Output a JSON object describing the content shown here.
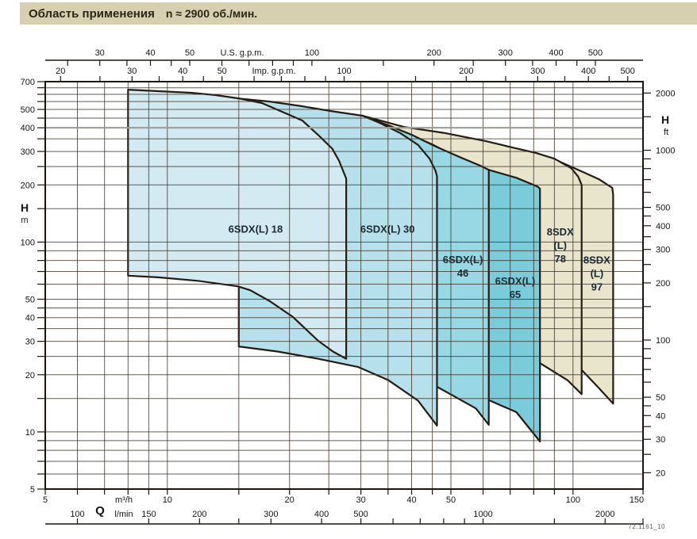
{
  "title": {
    "main": "Область применения",
    "rpm": "n ≈ 2900 об./мин."
  },
  "footnote": "72.1161_10",
  "colors": {
    "title_bg": "#d6d0b0",
    "outline": "#241c12",
    "grid": "#3a3125",
    "grid_gray_line": "#9c9c96",
    "text": "#141414",
    "region_label": "#1c2b33",
    "beige": "#e9e4cc"
  },
  "chart_data": {
    "type": "area",
    "description": "Log-log pump application range chart: overlapping operating envelopes (Q flow vs H head) for 6SDX(L) and 8SDX(L) borehole pump models at n ≈ 2900 rpm",
    "x_scale": {
      "unit": "m³/h",
      "min": 5,
      "max": 150,
      "log": true
    },
    "y_scale": {
      "unit": "m",
      "min": 5,
      "max": 700,
      "log": true
    },
    "grid": {
      "q_lines": [
        6,
        7,
        8,
        9,
        10,
        15,
        20,
        25,
        30,
        35,
        40,
        45,
        50,
        60,
        70,
        80,
        90,
        100
      ],
      "h_lines": [
        6,
        7,
        8,
        9,
        10,
        15,
        20,
        25,
        30,
        35,
        40,
        45,
        50,
        60,
        70,
        80,
        90,
        100,
        150,
        200,
        250,
        300,
        350,
        450,
        500,
        550,
        600,
        650
      ],
      "h_gray_line": 400
    },
    "axes": {
      "top_us": {
        "title": "U.S. g.p.m.",
        "factor_to_m3h": 0.22712,
        "ticks": [
          25,
          30,
          35,
          40,
          45,
          50,
          60,
          70,
          80,
          90,
          100,
          150,
          200,
          250,
          300,
          350,
          400,
          450,
          500
        ],
        "labeled": [
          30,
          40,
          50,
          100,
          200,
          300,
          400,
          500
        ]
      },
      "top_imp": {
        "title": "Imp. g.p.m.",
        "factor_to_m3h": 0.27276,
        "ticks": [
          20,
          25,
          30,
          35,
          40,
          45,
          50,
          60,
          70,
          80,
          90,
          100,
          150,
          200,
          250,
          300,
          350,
          400,
          450,
          500
        ],
        "labeled": [
          20,
          30,
          40,
          50,
          100,
          200,
          300,
          400,
          500
        ]
      },
      "left": {
        "title": "H",
        "unit": "m",
        "ticks": [
          700,
          650,
          600,
          550,
          500,
          450,
          400,
          350,
          300,
          250,
          200,
          150,
          100,
          90,
          80,
          70,
          60,
          50,
          45,
          40,
          35,
          30,
          25,
          20,
          15,
          10,
          9,
          8,
          7,
          6,
          5
        ],
        "labeled": [
          700,
          500,
          400,
          300,
          200,
          100,
          50,
          40,
          30,
          20,
          10,
          5
        ]
      },
      "right": {
        "title": "H",
        "unit": "ft",
        "factor_to_m": 0.3048,
        "ticks": [
          2000,
          1500,
          1000,
          900,
          800,
          700,
          600,
          500,
          450,
          400,
          350,
          300,
          250,
          200,
          150,
          100,
          90,
          80,
          70,
          60,
          50,
          45,
          40,
          35,
          30,
          25,
          20
        ],
        "labeled": [
          2000,
          1000,
          500,
          400,
          300,
          200,
          100,
          50,
          40,
          30,
          20
        ]
      },
      "bottom_m3h": {
        "title": "Q",
        "unit": "m³/h",
        "ticks": [
          5,
          6,
          7,
          8,
          9,
          10,
          15,
          20,
          25,
          30,
          35,
          40,
          45,
          50,
          60,
          70,
          80,
          90,
          100,
          150
        ],
        "labeled": [
          5,
          10,
          20,
          30,
          40,
          50,
          100,
          150
        ]
      },
      "bottom_lmin": {
        "unit": "l/min",
        "factor_to_m3h": 0.06,
        "ticks": [
          100,
          150,
          200,
          250,
          300,
          400,
          500,
          600,
          700,
          800,
          900,
          1000,
          1500,
          2000,
          2500
        ],
        "labeled": [
          100,
          150,
          200,
          300,
          400,
          500,
          1000,
          2000
        ]
      }
    },
    "series": [
      {
        "model": "8SDX(L) 97",
        "fill": "#e9e4cc",
        "label_lines": [
          "8SDX",
          "(L)",
          "97"
        ],
        "label_pos": [
          114.5,
          68.5
        ],
        "envelope": [
          [
            81,
            295
          ],
          [
            91,
            270
          ],
          [
            104,
            238
          ],
          [
            116,
            214
          ],
          [
            125,
            193
          ],
          [
            125.6,
            178
          ],
          [
            125.6,
            14.1
          ],
          [
            115,
            17.3
          ],
          [
            105,
            21.2
          ],
          [
            91,
            23.5
          ],
          [
            81,
            24.8
          ]
        ]
      },
      {
        "model": "8SDX(L) 78",
        "fill": "#e9e4cc",
        "label_lines": [
          "8SDX",
          "(L)",
          "78"
        ],
        "label_pos": [
          93,
          96
        ],
        "envelope": [
          [
            30.3,
            463
          ],
          [
            38.4,
            404
          ],
          [
            48,
            376
          ],
          [
            61,
            340
          ],
          [
            70,
            317
          ],
          [
            81,
            295
          ],
          [
            90,
            275
          ],
          [
            99,
            245
          ],
          [
            103,
            221
          ],
          [
            105,
            200
          ],
          [
            105,
            15.8
          ],
          [
            97,
            18.7
          ],
          [
            83,
            23
          ],
          [
            70.3,
            24.8
          ],
          [
            53,
            28
          ],
          [
            40.3,
            30.7
          ],
          [
            30.3,
            33.7
          ]
        ]
      },
      {
        "model": "6SDX(L) 65",
        "fill": "#7bccdb",
        "label_lines": [
          "6SDX(L)",
          "65"
        ],
        "label_pos": [
          72,
          57.5
        ],
        "envelope": [
          [
            40.3,
            362
          ],
          [
            45,
            327
          ],
          [
            50.5,
            287
          ],
          [
            56,
            262
          ],
          [
            62,
            240
          ],
          [
            72.5,
            218
          ],
          [
            81.8,
            196
          ],
          [
            82.9,
            191
          ],
          [
            82.9,
            8.9
          ],
          [
            72.5,
            12.7
          ],
          [
            62,
            14.7
          ],
          [
            50.5,
            17.5
          ],
          [
            40.3,
            20.7
          ]
        ]
      },
      {
        "model": "6SDX(L) 46",
        "fill": "#98d7e4",
        "label_lines": [
          "6SDX(L)",
          "46"
        ],
        "label_pos": [
          53.5,
          74.5
        ],
        "envelope": [
          [
            30.3,
            463
          ],
          [
            35.2,
            411
          ],
          [
            40.3,
            365
          ],
          [
            46,
            318
          ],
          [
            53.1,
            278
          ],
          [
            59,
            253
          ],
          [
            62,
            240
          ],
          [
            62,
            10.9
          ],
          [
            57.6,
            13.3
          ],
          [
            46.2,
            17.3
          ],
          [
            36.9,
            21.2
          ],
          [
            30.3,
            24.3
          ]
        ]
      },
      {
        "model": "6SDX(L) 30",
        "fill": "#b6e0eb",
        "label_lines": [
          "6SDX(L) 30"
        ],
        "label_pos": [
          34.9,
          117
        ],
        "envelope": [
          [
            15,
            570
          ],
          [
            17.9,
            550
          ],
          [
            21.4,
            520
          ],
          [
            25.6,
            488
          ],
          [
            30.3,
            463
          ],
          [
            33.4,
            424
          ],
          [
            37.5,
            375
          ],
          [
            41.5,
            325
          ],
          [
            44.3,
            275
          ],
          [
            45.8,
            238
          ],
          [
            46.2,
            222
          ],
          [
            46.2,
            10.8
          ],
          [
            41.5,
            14.6
          ],
          [
            35.1,
            18.7
          ],
          [
            29.5,
            22
          ],
          [
            23.5,
            24.3
          ],
          [
            18.7,
            26.5
          ],
          [
            15,
            28.2
          ]
        ]
      },
      {
        "model": "6SDX(L) 18",
        "fill": "#d4eaf3",
        "label_lines": [
          "6SDX(L) 18"
        ],
        "label_pos": [
          16.5,
          117
        ],
        "envelope": [
          [
            8,
            635
          ],
          [
            9.5,
            624
          ],
          [
            11.4,
            612
          ],
          [
            13.1,
            595
          ],
          [
            15.1,
            570
          ],
          [
            17.1,
            540
          ],
          [
            19.6,
            476
          ],
          [
            21.5,
            437
          ],
          [
            23.5,
            368
          ],
          [
            25.5,
            310
          ],
          [
            26.5,
            268
          ],
          [
            27.6,
            216
          ],
          [
            27.6,
            24.3
          ],
          [
            25.6,
            26.5
          ],
          [
            23.5,
            30.3
          ],
          [
            20.4,
            40.3
          ],
          [
            17.9,
            48.8
          ],
          [
            16,
            55.8
          ],
          [
            14.9,
            58.5
          ],
          [
            11.9,
            62.5
          ],
          [
            9.5,
            65.2
          ],
          [
            8,
            66.5
          ]
        ]
      }
    ]
  }
}
